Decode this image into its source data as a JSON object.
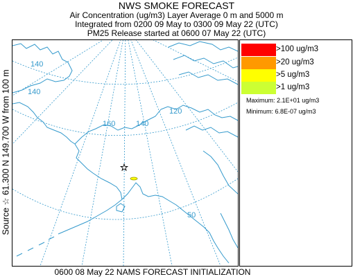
{
  "title": "NWS SMOKE FORECAST",
  "subtitle_lines": [
    "Air Concentration (ug/m3) Layer Average    0 m and  5000 m",
    "Integrated from 0200 09 May to 0300 09 May 22 (UTC)",
    "PM25 Release started at 0600 07 May 22 (UTC)"
  ],
  "source_label": "Source ☆ 61.300 N 149.700  W     from  100 m",
  "legend": [
    {
      "label": ">100 ug/m3",
      "color": "#ff0000"
    },
    {
      "label": ">20 ug/m3",
      "color": "#ff9900"
    },
    {
      "label": ">5 ug/m3",
      "color": "#ffff00"
    },
    {
      "label": ">1 ug/m3",
      "color": "#ccff33"
    }
  ],
  "maximum": "Maximum: 2.1E+01 ug/m3",
  "minimum": "Minimum: 6.8E-07 ug/m3",
  "footer": "0600 08 May 22 NAMS FORECAST INITIALIZATION",
  "map_labels": {
    "lon_140_a": "140",
    "lon_140_b": "140",
    "lon_160": "160",
    "lon_140_c": "140",
    "lon_120": "120",
    "lat_50": "50"
  },
  "colors": {
    "coastline": "#3399cc",
    "graticule": "#3399cc",
    "plume_outline": "#999900",
    "plume_fill": "#ffff00"
  },
  "source_marker": "source-star"
}
